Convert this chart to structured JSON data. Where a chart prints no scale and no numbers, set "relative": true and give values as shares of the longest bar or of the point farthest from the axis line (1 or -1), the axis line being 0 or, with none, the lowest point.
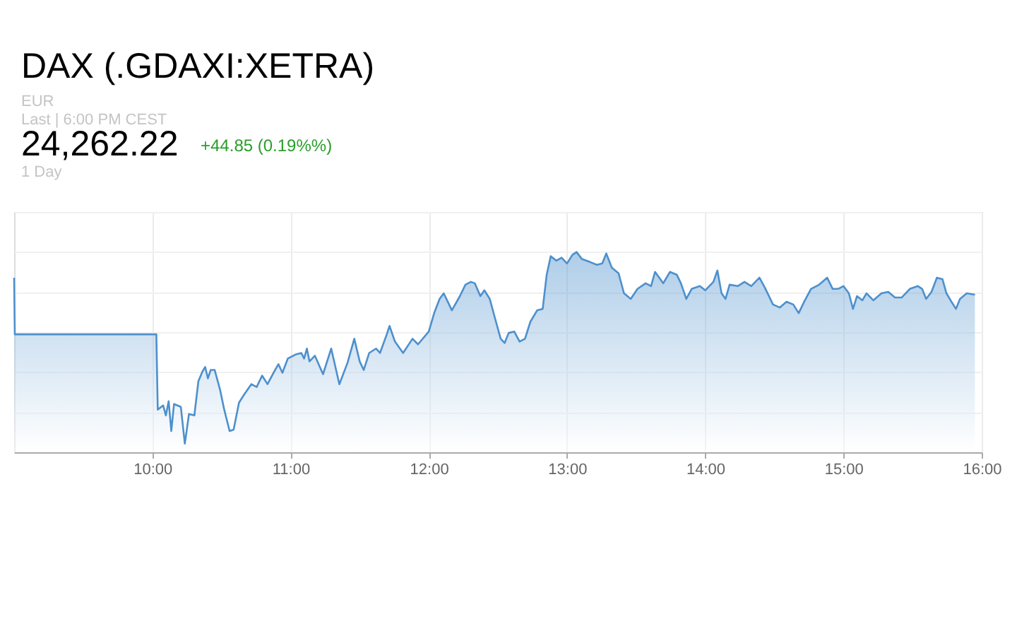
{
  "chart_data": {
    "type": "area",
    "title": "DAX (.GDAXI:XETRA)",
    "annotations": [
      "EUR",
      "Last | 6:00 PM CEST",
      "24,262.22",
      "+44.85 (0.19%%)",
      "1 Day"
    ],
    "relative": true,
    "x": [
      9.0,
      9.005,
      10.029,
      10.039,
      10.078,
      10.098,
      10.118,
      10.137,
      10.157,
      10.206,
      10.235,
      10.265,
      10.304,
      10.333,
      10.363,
      10.382,
      10.402,
      10.422,
      10.451,
      10.49,
      10.52,
      10.559,
      10.588,
      10.627,
      10.667,
      10.716,
      10.755,
      10.794,
      10.833,
      10.882,
      10.912,
      10.941,
      10.98,
      11.039,
      11.078,
      11.098,
      11.118,
      11.137,
      11.176,
      11.235,
      11.294,
      11.353,
      11.412,
      11.461,
      11.5,
      11.529,
      11.569,
      11.618,
      11.647,
      11.696,
      11.716,
      11.755,
      11.814,
      11.882,
      11.922,
      12.0,
      12.039,
      12.078,
      12.108,
      12.167,
      12.225,
      12.265,
      12.304,
      12.333,
      12.373,
      12.402,
      12.441,
      12.48,
      12.52,
      12.549,
      12.578,
      12.618,
      12.657,
      12.696,
      12.735,
      12.784,
      12.824,
      12.853,
      12.882,
      12.922,
      12.961,
      13.0,
      13.039,
      13.069,
      13.108,
      13.167,
      13.216,
      13.255,
      13.284,
      13.324,
      13.373,
      13.412,
      13.461,
      13.51,
      13.569,
      13.608,
      13.637,
      13.696,
      13.745,
      13.794,
      13.824,
      13.863,
      13.902,
      13.961,
      14.0,
      14.059,
      14.088,
      14.118,
      14.147,
      14.176,
      14.235,
      14.284,
      14.333,
      14.392,
      14.431,
      14.49,
      14.539,
      14.588,
      14.637,
      14.676,
      14.716,
      14.765,
      14.824,
      14.882,
      14.922,
      14.961,
      15.0,
      15.039,
      15.069,
      15.098,
      15.137,
      15.167,
      15.216,
      15.275,
      15.324,
      15.373,
      15.422,
      15.48,
      15.539,
      15.569,
      15.598,
      15.637,
      15.676,
      15.716,
      15.745,
      15.775,
      15.814,
      15.843,
      15.892,
      15.951
    ],
    "series": [
      {
        "color": "#4d90cd",
        "values": [
          0.872,
          0.589,
          0.589,
          0.213,
          0.234,
          0.184,
          0.255,
          0.106,
          0.241,
          0.227,
          0.043,
          0.191,
          0.184,
          0.355,
          0.404,
          0.426,
          0.369,
          0.411,
          0.411,
          0.312,
          0.213,
          0.106,
          0.113,
          0.248,
          0.291,
          0.34,
          0.326,
          0.383,
          0.34,
          0.404,
          0.44,
          0.397,
          0.468,
          0.489,
          0.496,
          0.468,
          0.518,
          0.454,
          0.482,
          0.39,
          0.518,
          0.34,
          0.447,
          0.567,
          0.454,
          0.411,
          0.496,
          0.518,
          0.496,
          0.589,
          0.631,
          0.553,
          0.496,
          0.567,
          0.539,
          0.603,
          0.695,
          0.766,
          0.794,
          0.709,
          0.78,
          0.837,
          0.851,
          0.844,
          0.78,
          0.809,
          0.766,
          0.667,
          0.567,
          0.546,
          0.596,
          0.603,
          0.553,
          0.567,
          0.652,
          0.709,
          0.716,
          0.887,
          0.979,
          0.957,
          0.972,
          0.943,
          0.986,
          1,
          0.965,
          0.95,
          0.936,
          0.943,
          0.993,
          0.922,
          0.894,
          0.794,
          0.766,
          0.816,
          0.844,
          0.83,
          0.901,
          0.844,
          0.901,
          0.887,
          0.844,
          0.766,
          0.816,
          0.83,
          0.809,
          0.851,
          0.908,
          0.794,
          0.766,
          0.837,
          0.83,
          0.851,
          0.83,
          0.872,
          0.823,
          0.738,
          0.723,
          0.752,
          0.738,
          0.695,
          0.752,
          0.816,
          0.837,
          0.872,
          0.816,
          0.816,
          0.83,
          0.794,
          0.716,
          0.78,
          0.759,
          0.794,
          0.759,
          0.794,
          0.801,
          0.773,
          0.773,
          0.816,
          0.83,
          0.816,
          0.766,
          0.801,
          0.872,
          0.865,
          0.794,
          0.759,
          0.716,
          0.766,
          0.794,
          0.787
        ]
      }
    ],
    "xlim": [
      9,
      16
    ],
    "xticks": [
      {
        "value": 10,
        "label": "10:00"
      },
      {
        "value": 11,
        "label": "11:00"
      },
      {
        "value": 12,
        "label": "12:00"
      },
      {
        "value": 13,
        "label": "13:00"
      },
      {
        "value": 14,
        "label": "14:00"
      },
      {
        "value": 15,
        "label": "15:00"
      },
      {
        "value": 16,
        "label": "16:00"
      }
    ],
    "grid": true
  }
}
